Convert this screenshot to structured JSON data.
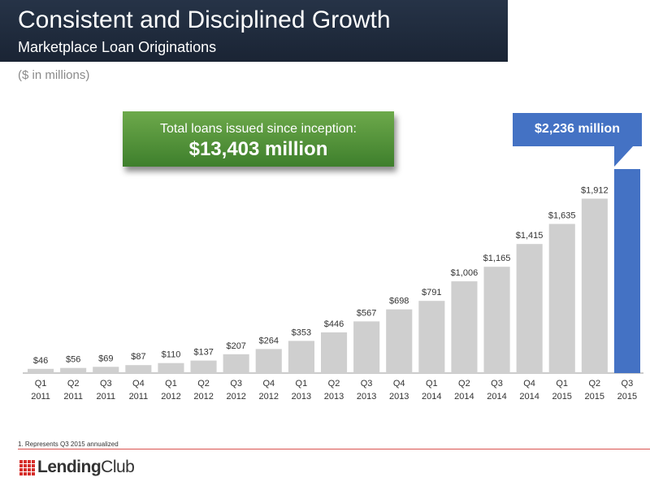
{
  "header": {
    "title": "Consistent and Disciplined Growth",
    "subtitle": "Marketplace Loan Originations"
  },
  "units_note": "($ in millions)",
  "callout_total": {
    "line1": "Total loans issued since inception:",
    "line2": "$13,403 million"
  },
  "callout_latest": {
    "label": "$2,236 million"
  },
  "footnote": "1. Represents Q3 2015 annualized",
  "logo": {
    "part1": "Lending",
    "part2": "Club"
  },
  "colors": {
    "bar": "#cfcfcf",
    "highlight_bar": "#4472c4",
    "title_bg": "#1e2a3c",
    "green": "#4f8f37"
  },
  "chart_data": {
    "type": "bar",
    "categories": [
      [
        "Q1",
        "2011"
      ],
      [
        "Q2",
        "2011"
      ],
      [
        "Q3",
        "2011"
      ],
      [
        "Q4",
        "2011"
      ],
      [
        "Q1",
        "2012"
      ],
      [
        "Q2",
        "2012"
      ],
      [
        "Q3",
        "2012"
      ],
      [
        "Q4",
        "2012"
      ],
      [
        "Q1",
        "2013"
      ],
      [
        "Q2",
        "2013"
      ],
      [
        "Q3",
        "2013"
      ],
      [
        "Q4",
        "2013"
      ],
      [
        "Q1",
        "2014"
      ],
      [
        "Q2",
        "2014"
      ],
      [
        "Q3",
        "2014"
      ],
      [
        "Q4",
        "2014"
      ],
      [
        "Q1",
        "2015"
      ],
      [
        "Q2",
        "2015"
      ],
      [
        "Q3",
        "2015"
      ]
    ],
    "values": [
      46,
      56,
      69,
      87,
      110,
      137,
      207,
      264,
      353,
      446,
      567,
      698,
      791,
      1006,
      1165,
      1415,
      1635,
      1912,
      2236
    ],
    "data_labels": [
      "$46",
      "$56",
      "$69",
      "$87",
      "$110",
      "$137",
      "$207",
      "$264",
      "$353",
      "$446",
      "$567",
      "$698",
      "$791",
      "$1,006",
      "$1,165",
      "$1,415",
      "$1,635",
      "$1,912",
      ""
    ],
    "highlight_index": 18,
    "ylim": [
      0,
      2236
    ],
    "title": "",
    "xlabel": "",
    "ylabel": ""
  }
}
